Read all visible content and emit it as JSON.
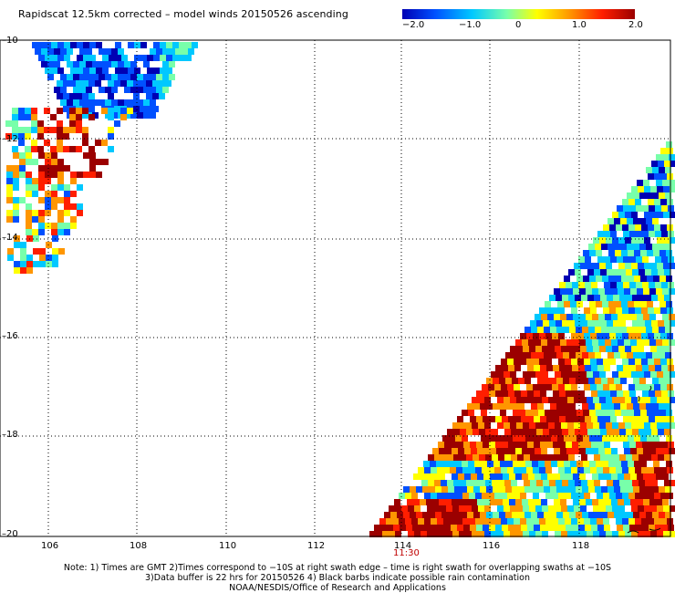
{
  "title": "Rapidscat 12.5km corrected – model winds 20150526 ascending",
  "colorbar": {
    "ticks": [
      "−2.0",
      "−1.0",
      "0",
      "1.0",
      "2.0"
    ],
    "range": [
      -2.0,
      2.0
    ],
    "colors": [
      "#0000b4",
      "#0050ff",
      "#00c8ff",
      "#78ffaa",
      "#ffff00",
      "#ff9600",
      "#ff1e00",
      "#9b0000"
    ]
  },
  "axes": {
    "x_ticks": [
      "106",
      "108",
      "110",
      "112",
      "114",
      "116",
      "118"
    ],
    "y_ticks": [
      "–10",
      "–12",
      "–14",
      "–16",
      "–18",
      "–20"
    ],
    "lon_range": [
      105.2,
      120.2
    ],
    "lat_range": [
      -20,
      -10
    ],
    "grid": "dotted"
  },
  "swath_time": "11:30",
  "notes": [
    "Note: 1) Times are GMT 2)Times correspond to −10S at right swath edge – time is right swath for overlapping swaths at −10S",
    "3)Data buffer is 22 hrs for 20150526 4) Black barbs indicate possible rain contamination",
    "NOAA/NESDIS/Office of Research and Applications"
  ]
}
